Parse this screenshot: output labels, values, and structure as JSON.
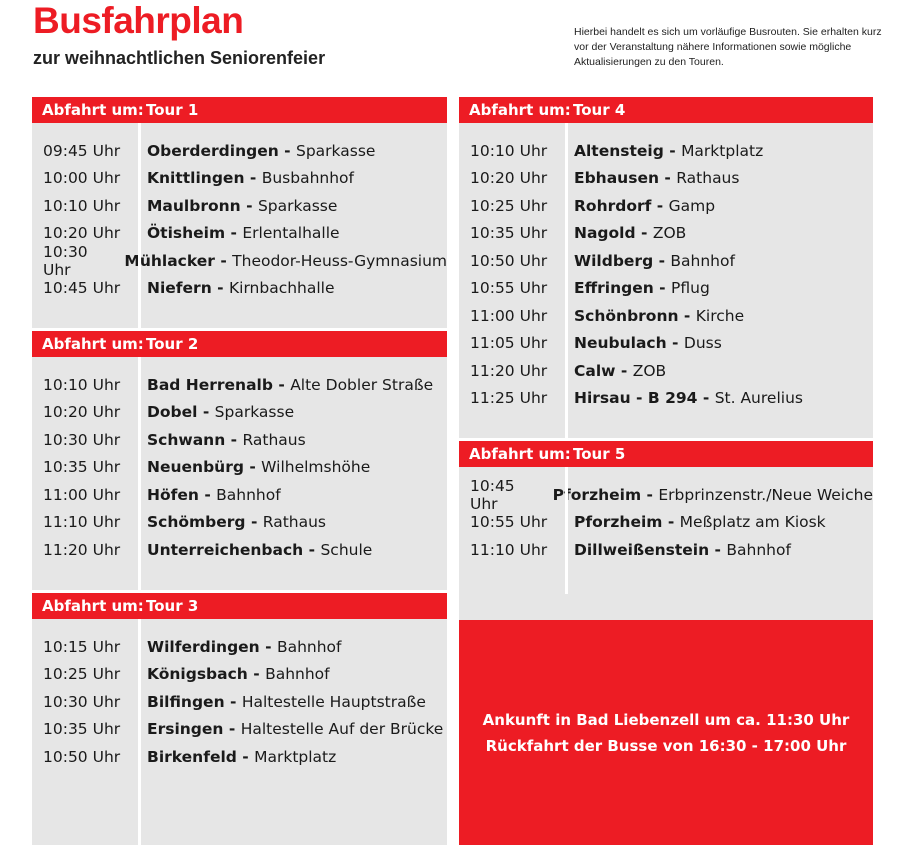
{
  "title": "Busfahrplan",
  "subtitle": "zur weihnachtlichen Seniorenfeier",
  "note": "Hierbei handelt es sich um vorläufige Busrouten. Sie erhalten kurz vor der Veranstaltung nähere Informationen sowie mögliche Aktualisierungen zu den Touren.",
  "header_label": "Abfahrt um:",
  "accent_color": "#ed1c24",
  "tours": [
    {
      "name": "Tour 1",
      "stops": [
        {
          "time": "09:45 Uhr",
          "town": "Oberderdingen",
          "sep": " - ",
          "place": "Sparkasse"
        },
        {
          "time": "10:00 Uhr",
          "town": "Knittlingen",
          "sep": " - ",
          "place": "Busbahnhof"
        },
        {
          "time": "10:10 Uhr",
          "town": "Maulbronn",
          "sep": " - ",
          "place": "Sparkasse"
        },
        {
          "time": "10:20 Uhr",
          "town": "Ötisheim",
          "sep": " - ",
          "place": "Erlentalhalle"
        },
        {
          "time": "10:30 Uhr",
          "town": "Mühlacker",
          "sep": " - ",
          "place": "Theodor-Heuss-Gymnasium"
        },
        {
          "time": "10:45 Uhr",
          "town": "Niefern",
          "sep": " - ",
          "place": "Kirnbachhalle"
        }
      ]
    },
    {
      "name": "Tour 2",
      "stops": [
        {
          "time": "10:10 Uhr",
          "town": "Bad Herrenalb",
          "sep": " - ",
          "place": "Alte Dobler Straße"
        },
        {
          "time": "10:20 Uhr",
          "town": "Dobel",
          "sep": " - ",
          "place": "Sparkasse"
        },
        {
          "time": "10:30 Uhr",
          "town": "Schwann",
          "sep": " - ",
          "place": "Rathaus"
        },
        {
          "time": "10:35 Uhr",
          "town": "Neuenbürg",
          "sep": " - ",
          "place": "Wilhelmshöhe"
        },
        {
          "time": "11:00 Uhr",
          "town": "Höfen",
          "sep": " - ",
          "place": "Bahnhof"
        },
        {
          "time": "11:10 Uhr",
          "town": "Schömberg",
          "sep": " - ",
          "place": "Rathaus"
        },
        {
          "time": "11:20 Uhr",
          "town": "Unterreichenbach",
          "sep": " - ",
          "place": "Schule"
        }
      ]
    },
    {
      "name": "Tour 3",
      "stops": [
        {
          "time": "10:15 Uhr",
          "town": "Wilferdingen",
          "sep": " - ",
          "place": "Bahnhof"
        },
        {
          "time": "10:25 Uhr",
          "town": "Königsbach",
          "sep": " - ",
          "place": "Bahnhof"
        },
        {
          "time": "10:30 Uhr",
          "town": "Bilfingen",
          "sep": " - ",
          "place": "Haltestelle Hauptstraße"
        },
        {
          "time": "10:35 Uhr",
          "town": "Ersingen",
          "sep": " - ",
          "place": "Haltestelle Auf der Brücke"
        },
        {
          "time": "10:50 Uhr",
          "town": "Birkenfeld",
          "sep": " - ",
          "place": "Marktplatz"
        }
      ]
    },
    {
      "name": "Tour 4",
      "stops": [
        {
          "time": "10:10 Uhr",
          "town": "Altensteig",
          "sep": " - ",
          "place": "Marktplatz"
        },
        {
          "time": "10:20 Uhr",
          "town": "Ebhausen",
          "sep": " - ",
          "place": "Rathaus"
        },
        {
          "time": "10:25 Uhr",
          "town": "Rohrdorf",
          "sep": " - ",
          "place": "Gamp"
        },
        {
          "time": "10:35 Uhr",
          "town": "Nagold",
          "sep": " - ",
          "place": "ZOB"
        },
        {
          "time": "10:50 Uhr",
          "town": "Wildberg",
          "sep": " - ",
          "place": "Bahnhof"
        },
        {
          "time": "10:55 Uhr",
          "town": "Effringen",
          "sep": " - ",
          "place": "Pflug"
        },
        {
          "time": "11:00 Uhr",
          "town": "Schönbronn",
          "sep": " - ",
          "place": "Kirche"
        },
        {
          "time": "11:05 Uhr",
          "town": "Neubulach",
          "sep": " - ",
          "place": "Duss"
        },
        {
          "time": "11:20 Uhr",
          "town": "Calw",
          "sep": " - ",
          "place": "ZOB"
        },
        {
          "time": "11:25 Uhr",
          "town": "Hirsau",
          "sep": " - B 294 - ",
          "place": "St. Aurelius"
        }
      ]
    },
    {
      "name": "Tour 5",
      "stops": [
        {
          "time": "10:45 Uhr",
          "town": "Pforzheim",
          "sep": " - ",
          "place": "Erbprinzenstr./Neue Weiche"
        },
        {
          "time": "10:55 Uhr",
          "town": "Pforzheim",
          "sep": " - ",
          "place": "Meßplatz am Kiosk"
        },
        {
          "time": "11:10 Uhr",
          "town": "Dillweißenstein",
          "sep": " - ",
          "place": "Bahnhof"
        }
      ]
    }
  ],
  "arrival": {
    "line1": "Ankunft in Bad Liebenzell um ca. 11:30 Uhr",
    "line2": "Rückfahrt der Busse von 16:30 - 17:00 Uhr"
  }
}
